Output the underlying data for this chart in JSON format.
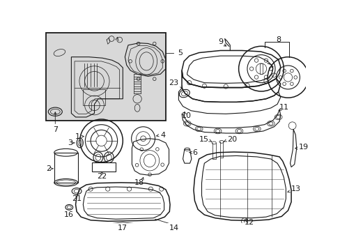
{
  "bg_color": "#ffffff",
  "line_color": "#1a1a1a",
  "shaded_box_bg": "#d8d8d8",
  "figsize": [
    4.89,
    3.6
  ],
  "dpi": 100
}
